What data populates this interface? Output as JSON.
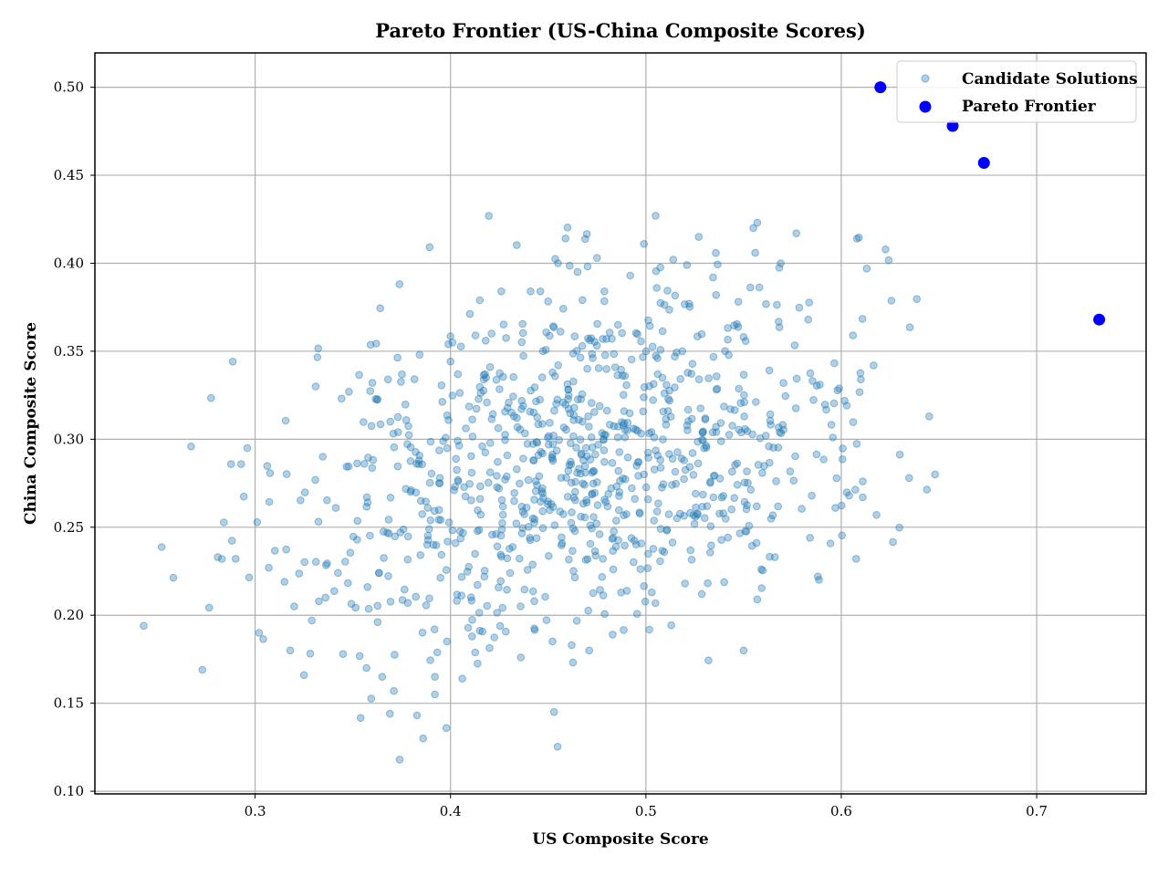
{
  "chart_data": {
    "type": "scatter",
    "title": "Pareto Frontier (US-China Composite Scores)",
    "xlabel": "US Composite Score",
    "ylabel": "China Composite Score",
    "xlim": [
      0.218,
      0.756
    ],
    "ylim": [
      0.0985,
      0.5195
    ],
    "x_ticks": [
      0.3,
      0.4,
      0.5,
      0.6,
      0.7
    ],
    "y_ticks": [
      0.1,
      0.15,
      0.2,
      0.25,
      0.3,
      0.35,
      0.4,
      0.45,
      0.5
    ],
    "x_tick_labels": [
      "0.3",
      "0.4",
      "0.5",
      "0.6",
      "0.7"
    ],
    "y_tick_labels": [
      "0.10",
      "0.15",
      "0.20",
      "0.25",
      "0.30",
      "0.35",
      "0.40",
      "0.45",
      "0.50"
    ],
    "grid": true,
    "legend_position": "top-right",
    "series": [
      {
        "name": "Candidate Solutions",
        "color": "#1f77b4",
        "opacity": 0.35,
        "generated": {
          "count": 1000,
          "x_mean": 0.47,
          "x_sd": 0.075,
          "y_mean": 0.29,
          "y_sd": 0.052,
          "correlation": 0.33,
          "x_range": [
            0.24,
            0.65
          ],
          "y_range": [
            0.117,
            0.428
          ]
        },
        "points": [
          [
            0.243,
            0.194
          ],
          [
            0.273,
            0.169
          ],
          [
            0.283,
            0.232
          ],
          [
            0.296,
            0.295
          ],
          [
            0.302,
            0.19
          ],
          [
            0.307,
            0.227
          ],
          [
            0.315,
            0.219
          ],
          [
            0.318,
            0.18
          ],
          [
            0.32,
            0.205
          ],
          [
            0.325,
            0.166
          ],
          [
            0.329,
            0.197
          ],
          [
            0.331,
            0.33
          ],
          [
            0.336,
            0.21
          ],
          [
            0.345,
            0.178
          ],
          [
            0.348,
            0.327
          ],
          [
            0.357,
            0.17
          ],
          [
            0.36,
            0.332
          ],
          [
            0.365,
            0.165
          ],
          [
            0.368,
            0.334
          ],
          [
            0.369,
            0.144
          ],
          [
            0.371,
            0.157
          ],
          [
            0.374,
            0.118
          ],
          [
            0.386,
            0.13
          ],
          [
            0.392,
            0.155
          ],
          [
            0.392,
            0.165
          ],
          [
            0.401,
            0.355
          ],
          [
            0.406,
            0.164
          ],
          [
            0.411,
            0.188
          ],
          [
            0.415,
            0.379
          ],
          [
            0.418,
            0.356
          ],
          [
            0.421,
            0.36
          ],
          [
            0.426,
            0.384
          ],
          [
            0.436,
            0.176
          ],
          [
            0.441,
            0.384
          ],
          [
            0.446,
            0.384
          ],
          [
            0.453,
            0.145
          ],
          [
            0.455,
            0.4
          ],
          [
            0.462,
            0.183
          ],
          [
            0.465,
            0.395
          ],
          [
            0.471,
            0.18
          ],
          [
            0.475,
            0.403
          ],
          [
            0.483,
            0.189
          ],
          [
            0.492,
            0.393
          ],
          [
            0.499,
            0.411
          ],
          [
            0.503,
            0.213
          ],
          [
            0.505,
            0.427
          ],
          [
            0.514,
            0.402
          ],
          [
            0.521,
            0.399
          ],
          [
            0.52,
            0.218
          ],
          [
            0.527,
            0.415
          ],
          [
            0.55,
            0.18
          ],
          [
            0.555,
            0.42
          ],
          [
            0.557,
            0.423
          ],
          [
            0.557,
            0.209
          ],
          [
            0.566,
            0.233
          ],
          [
            0.569,
            0.4
          ],
          [
            0.577,
            0.417
          ],
          [
            0.584,
            0.244
          ],
          [
            0.588,
            0.222
          ],
          [
            0.597,
            0.261
          ],
          [
            0.604,
            0.268
          ],
          [
            0.606,
            0.359
          ],
          [
            0.608,
            0.414
          ],
          [
            0.61,
            0.334
          ],
          [
            0.611,
            0.276
          ],
          [
            0.611,
            0.267
          ],
          [
            0.613,
            0.397
          ],
          [
            0.618,
            0.257
          ],
          [
            0.645,
            0.313
          ],
          [
            0.648,
            0.28
          ]
        ]
      },
      {
        "name": "Pareto Frontier",
        "color": "#0000ff",
        "points": [
          [
            0.62,
            0.5
          ],
          [
            0.657,
            0.478
          ],
          [
            0.673,
            0.457
          ],
          [
            0.732,
            0.368
          ]
        ]
      }
    ]
  }
}
